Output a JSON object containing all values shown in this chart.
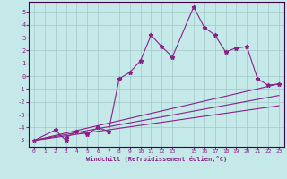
{
  "xlabel": "Windchill (Refroidissement éolien,°C)",
  "background_color": "#c5e8e8",
  "grid_color": "#a0c8c8",
  "line_color": "#882288",
  "spine_color": "#440044",
  "xlim": [
    -0.5,
    23.5
  ],
  "ylim": [
    -5.5,
    5.8
  ],
  "xticks": [
    0,
    1,
    2,
    3,
    4,
    5,
    6,
    7,
    8,
    9,
    10,
    11,
    12,
    13,
    15,
    16,
    17,
    18,
    19,
    20,
    21,
    22,
    23
  ],
  "yticks": [
    -5,
    -4,
    -3,
    -2,
    -1,
    0,
    1,
    2,
    3,
    4,
    5
  ],
  "scatter_x": [
    0,
    2,
    3,
    3,
    4,
    5,
    6,
    7,
    8,
    9,
    10,
    11,
    12,
    13,
    15,
    16,
    17,
    18,
    19,
    20,
    21,
    22,
    23
  ],
  "scatter_y": [
    -5.0,
    -4.2,
    -5.0,
    -4.8,
    -4.3,
    -4.5,
    -4.0,
    -4.3,
    -0.2,
    0.3,
    1.2,
    3.2,
    2.3,
    1.5,
    5.4,
    3.8,
    3.2,
    1.9,
    2.2,
    2.3,
    -0.2,
    -0.7,
    -0.6
  ],
  "line1_x": [
    0,
    23
  ],
  "line1_y": [
    -5.0,
    -0.6
  ],
  "line2_x": [
    0,
    23
  ],
  "line2_y": [
    -5.0,
    -1.5
  ],
  "line3_x": [
    0,
    23
  ],
  "line3_y": [
    -5.0,
    -2.3
  ]
}
